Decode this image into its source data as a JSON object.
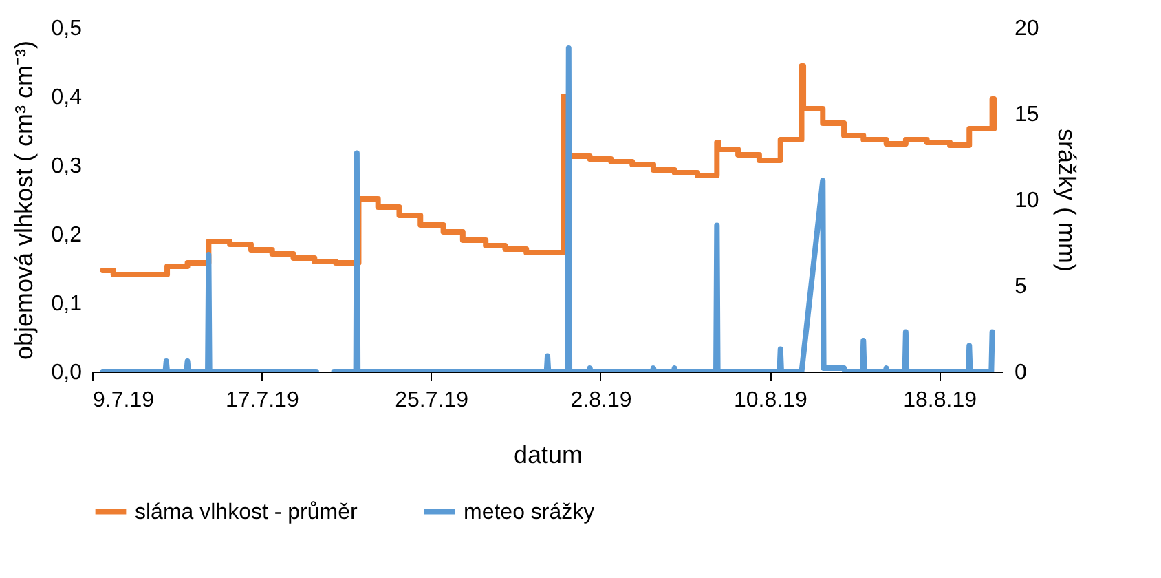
{
  "chart_data": {
    "type": "line",
    "xlabel": "datum",
    "ylabel": "objemová vlhkost ( cm³ cm⁻³)",
    "y2label": "srážky ( mm)",
    "legend": "bottom",
    "grid": false,
    "xlim": [
      "--07-09",
      "--08-21"
    ],
    "xticks": [
      {
        "value": "--07-09",
        "label": "9.7.19"
      },
      {
        "value": "--07-17",
        "label": "17.7.19"
      },
      {
        "value": "--07-25",
        "label": "25.7.19"
      },
      {
        "value": "--08-02",
        "label": "2.8.19"
      },
      {
        "value": "--08-10",
        "label": "10.8.19"
      },
      {
        "value": "--08-18",
        "label": "18.8.19"
      }
    ],
    "ylim": [
      0,
      0.5
    ],
    "yticks": [
      {
        "value": 0,
        "label": "0,0"
      },
      {
        "value": 0.1,
        "label": "0,1"
      },
      {
        "value": 0.2,
        "label": "0,2"
      },
      {
        "value": 0.3,
        "label": "0,3"
      },
      {
        "value": 0.4,
        "label": "0,4"
      },
      {
        "value": 0.5,
        "label": "0,5"
      }
    ],
    "y2lim": [
      0,
      20
    ],
    "y2ticks": [
      0,
      5,
      10,
      15,
      20
    ],
    "series": [
      {
        "name": "sláma vlhkost - průměr",
        "type": "step",
        "color": "#ed7d31",
        "x": [
          "--07-09T12:00",
          "--07-10T00:00",
          "--07-12T13:00",
          "--07-13T12:00",
          "--07-14T12:00",
          "--07-15T12:00",
          "--07-16T12:00",
          "--07-17T12:00",
          "--07-18T12:00",
          "--07-19T12:00",
          "--07-20T12:00",
          "--07-21T14:00",
          "--07-22T12:00",
          "--07-23T12:00",
          "--07-24T12:00",
          "--07-25T14:00",
          "--07-26T12:00",
          "--07-27T14:00",
          "--07-28T12:00",
          "--07-29T12:00",
          "--07-31T06:00",
          "--07-31T10:00",
          "--08-01T12:00",
          "--08-02T12:00",
          "--08-03T12:00",
          "--08-04T12:00",
          "--08-05T12:00",
          "--08-06T14:00",
          "--08-07T12:00",
          "--08-07T14:00",
          "--08-08T12:00",
          "--08-09T12:00",
          "--08-10T12:00",
          "--08-11T12:00",
          "--08-11T14:00",
          "--08-12T12:00",
          "--08-13T12:00",
          "--08-14T10:00",
          "--08-15T12:00",
          "--08-16T10:00",
          "--08-17T10:00",
          "--08-18T12:00",
          "--08-19T10:00",
          "--08-20T12:00",
          "--08-20T14:00"
        ],
        "values": [
          0.147,
          0.141,
          0.153,
          0.158,
          0.189,
          0.185,
          0.177,
          0.171,
          0.165,
          0.16,
          0.158,
          0.251,
          0.239,
          0.227,
          0.213,
          0.203,
          0.191,
          0.183,
          0.178,
          0.173,
          0.4,
          0.313,
          0.309,
          0.305,
          0.301,
          0.293,
          0.289,
          0.285,
          0.333,
          0.323,
          0.315,
          0.307,
          0.337,
          0.444,
          0.382,
          0.361,
          0.343,
          0.337,
          0.331,
          0.337,
          0.333,
          0.329,
          0.353,
          0.396,
          0.353
        ]
      },
      {
        "name": "meteo srážky",
        "type": "line",
        "axis": "y2",
        "color": "#5b9bd5",
        "x": [
          "--07-09T12:00",
          "--07-12T11:00",
          "--07-12T12:00",
          "--07-12T13:00",
          "--07-13T11:00",
          "--07-13T12:00",
          "--07-13T13:00",
          "--07-14T11:00",
          "--07-14T12:00",
          "--07-14T13:00",
          "--07-19T14:00",
          "--07-20T00:00",
          "--07-20T10:00",
          "--07-21T11:00",
          "--07-21T12:00",
          "--07-21T13:00",
          "--07-30T11:00",
          "--07-30T12:00",
          "--07-30T13:00",
          "--07-31T11:00",
          "--07-31T12:00",
          "--07-31T13:00",
          "--08-01T11:00",
          "--08-01T12:00",
          "--08-01T13:00",
          "--08-04T11:00",
          "--08-04T12:00",
          "--08-04T13:00",
          "--08-05T11:00",
          "--08-05T12:00",
          "--08-05T13:00",
          "--08-07T11:00",
          "--08-07T12:00",
          "--08-07T13:00",
          "--08-10T11:00",
          "--08-10T12:00",
          "--08-10T13:00",
          "--08-11T12:00",
          "--08-12T12:00",
          "--08-12T13:00",
          "--08-13T12:00",
          "--08-13T13:00",
          "--08-14T09:00",
          "--08-14T10:00",
          "--08-14T11:00",
          "--08-15T11:00",
          "--08-15T12:00",
          "--08-15T13:00",
          "--08-16T09:00",
          "--08-16T10:00",
          "--08-16T11:00",
          "--08-19T09:00",
          "--08-19T10:00",
          "--08-19T11:00",
          "--08-20T11:00",
          "--08-20T12:00"
        ],
        "values": [
          0,
          0,
          0.6,
          0,
          0,
          0.6,
          0,
          0,
          6.8,
          0,
          0,
          null,
          0,
          0,
          12.7,
          0,
          0,
          0.9,
          0,
          0,
          18.8,
          0,
          0,
          0.2,
          0,
          0,
          0.2,
          0,
          0,
          0.2,
          0,
          0,
          8.5,
          0,
          0,
          1.3,
          0,
          0,
          11.1,
          0.2,
          0.2,
          0,
          0,
          1.8,
          0,
          0,
          0.2,
          0,
          0,
          2.3,
          0,
          0,
          1.5,
          0,
          0,
          2.3
        ]
      }
    ]
  }
}
